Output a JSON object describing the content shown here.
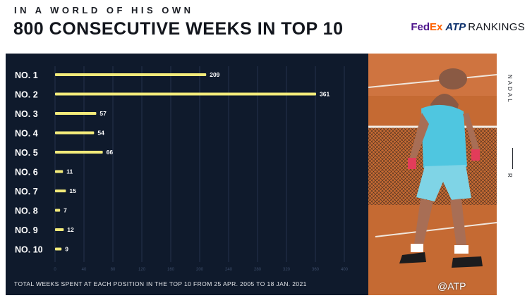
{
  "header": {
    "kicker": "IN A WORLD OF HIS OWN",
    "title": "800 CONSECUTIVE WEEKS IN TOP 10",
    "brand": {
      "fed": "Fed",
      "ex": "Ex",
      "atp": "ATP",
      "rankings": "RANKINGS"
    }
  },
  "chart_data": {
    "type": "bar",
    "orientation": "horizontal",
    "categories": [
      "NO. 1",
      "NO. 2",
      "NO. 3",
      "NO. 4",
      "NO. 5",
      "NO. 6",
      "NO. 7",
      "NO. 8",
      "NO. 9",
      "NO. 10"
    ],
    "values": [
      209,
      361,
      57,
      54,
      66,
      11,
      15,
      7,
      12,
      9
    ],
    "xticks": [
      0,
      40,
      80,
      120,
      160,
      200,
      240,
      280,
      320,
      360,
      400
    ],
    "xlim": [
      0,
      400
    ],
    "grid": true,
    "bar_color": "#f2ea7a",
    "footnote": "TOTAL WEEKS SPENT AT EACH POSITION IN THE TOP 10 FROM 25 APR. 2005 TO 18 JAN. 2021"
  },
  "sidebar": {
    "name": "NADAL",
    "initial": "R"
  },
  "watermark": "@ATP"
}
